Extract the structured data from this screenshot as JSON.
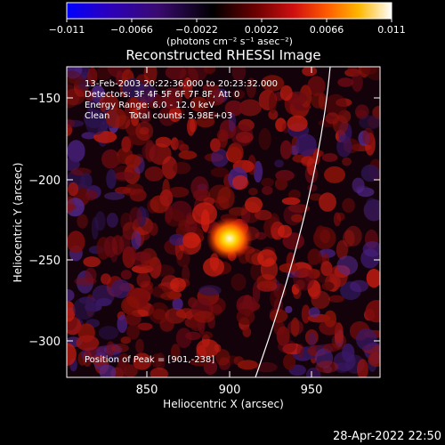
{
  "colorbar": {
    "ticks": [
      "−0.011",
      "−0.0066",
      "−0.0022",
      "0.0022",
      "0.0066",
      "0.011"
    ],
    "units": "(photons cm⁻² s⁻¹ asec⁻²)",
    "range": [
      -0.011,
      0.011
    ],
    "colors": {
      "low": "#0000ff",
      "mid": "#000000",
      "high": "#ffffff"
    }
  },
  "title": "Reconstructed RHESSI Image",
  "info": {
    "line1": "13-Feb-2003 20:22:36.000 to 20:23:32.000",
    "line2": "Detectors: 3F 4F 5F 6F 7F 8F, Att 0",
    "line3": "Energy Range: 6.0 - 12.0 keV",
    "clean_label": "Clean",
    "total_counts": "Total counts: 5.98E+03"
  },
  "peak": "Position of Peak = [901,-238]",
  "x_axis": {
    "label": "Heliocentric X (arcsec)",
    "ticks": [
      "850",
      "900",
      "950"
    ],
    "range": [
      803,
      992
    ]
  },
  "y_axis": {
    "label": "Heliocentric Y (arcsec)",
    "ticks": [
      "−150",
      "−200",
      "−250",
      "−300"
    ],
    "range": [
      -322,
      -133
    ]
  },
  "timestamp": "28-Apr-2022 22:50"
}
